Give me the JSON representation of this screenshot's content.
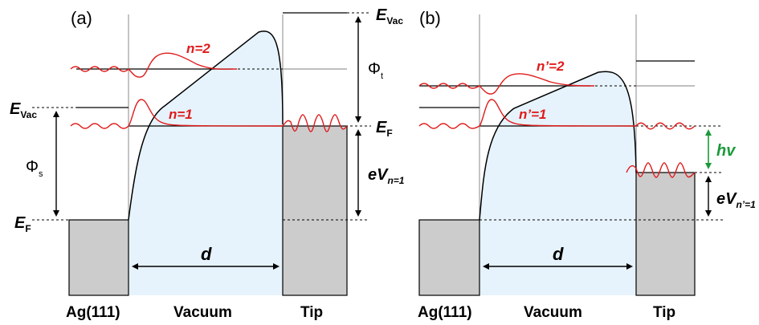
{
  "panels": [
    {
      "id": "a",
      "label": "(a)",
      "regions": {
        "sample": "Ag(111)",
        "vacuum": "Vacuum",
        "tip": "Tip"
      },
      "sample_levels": {
        "vacuum_E": "E",
        "vacuum_sub": "Vac",
        "fermi_E": "E",
        "fermi_sub": "F",
        "workfunction": "Φ",
        "workfunction_sub": "s"
      },
      "tip_levels": {
        "vacuum_E": "E",
        "vacuum_sub": "Vac",
        "fermi_E": "E",
        "fermi_sub": "F",
        "workfunction": "Φ",
        "workfunction_sub": "t"
      },
      "states": {
        "n2": "n=2",
        "n1": "n=1"
      },
      "bias": {
        "prefix": "eV",
        "sub": "n=1"
      },
      "gap": "d"
    },
    {
      "id": "b",
      "label": "(b)",
      "regions": {
        "sample": "Ag(111)",
        "vacuum": "Vacuum",
        "tip": "Tip"
      },
      "states": {
        "n2": "n’=2",
        "n1": "n’=1"
      },
      "photon": "hv",
      "bias": {
        "prefix": "eV",
        "sub": "n’=1"
      },
      "gap": "d"
    }
  ],
  "colors": {
    "wave": "#e01b1b",
    "vacuum_fill": "#e6f3fc",
    "metal_fill": "#cccccc",
    "photon_arrow": "#1a9a3a"
  }
}
